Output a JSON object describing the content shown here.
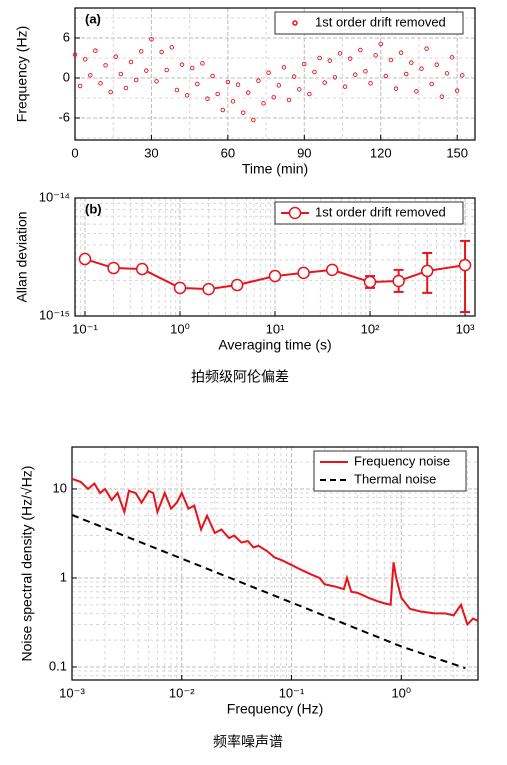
{
  "chart_data": [
    {
      "type": "scatter",
      "annotation": "(a)",
      "xlabel": "Time (min)",
      "ylabel": "Frequency (Hz)",
      "xlim": [
        0,
        157
      ],
      "ylim": [
        -9.3,
        10.5
      ],
      "xticks": [
        0,
        30,
        60,
        90,
        120,
        150
      ],
      "yticks": [
        -6,
        0,
        6
      ],
      "grid": true,
      "legend": "upper right",
      "series": [
        {
          "name": "1st order drift removed",
          "color": "#e8141c",
          "marker": "circle",
          "line_style": "none",
          "x": [
            0,
            2,
            4,
            6,
            8,
            10,
            12,
            14,
            16,
            18,
            20,
            22,
            24,
            26,
            28,
            30,
            32,
            34,
            36,
            38,
            40,
            42,
            44,
            46,
            48,
            50,
            52,
            54,
            56,
            58,
            60,
            62,
            64,
            66,
            68,
            70,
            72,
            74,
            76,
            78,
            80,
            82,
            84,
            86,
            88,
            90,
            92,
            94,
            96,
            98,
            100,
            102,
            104,
            106,
            108,
            110,
            112,
            114,
            116,
            118,
            120,
            122,
            124,
            126,
            128,
            130,
            132,
            134,
            136,
            138,
            140,
            142,
            144,
            146,
            148,
            150,
            152
          ],
          "values": [
            3.5,
            -1.2,
            2.8,
            0.4,
            4.1,
            -0.8,
            1.9,
            -2.1,
            3.2,
            0.6,
            -1.5,
            2.4,
            -0.3,
            4.0,
            1.1,
            5.8,
            -0.5,
            3.9,
            1.2,
            4.6,
            -1.8,
            2.0,
            -2.6,
            1.5,
            -0.9,
            2.2,
            -3.1,
            0.3,
            -2.4,
            -4.8,
            -0.6,
            -3.5,
            -1.0,
            -5.2,
            -2.2,
            -6.3,
            -0.4,
            -3.8,
            0.8,
            -2.9,
            -1.1,
            1.6,
            -3.3,
            0.2,
            -1.7,
            2.1,
            -2.4,
            0.9,
            3.0,
            -0.7,
            2.6,
            0.1,
            3.7,
            -1.3,
            2.9,
            0.5,
            4.2,
            1.0,
            -0.8,
            3.4,
            5.1,
            0.3,
            2.7,
            -1.6,
            3.8,
            0.6,
            2.3,
            -2.0,
            1.4,
            4.4,
            -0.9,
            2.0,
            -2.8,
            0.7,
            3.1,
            -1.9,
            0.4
          ]
        }
      ]
    },
    {
      "type": "line",
      "annotation": "(b)",
      "xlabel": "Averaging time (s)",
      "ylabel": "Allan deviation",
      "xscale": "log",
      "yscale": "log",
      "xlim": [
        0.0785,
        1273
      ],
      "ylim": [
        1e-15,
        1e-14
      ],
      "xticks": [
        {
          "value": 0.1,
          "label": "10⁻¹"
        },
        {
          "value": 1,
          "label": "10⁰"
        },
        {
          "value": 10,
          "label": "10¹"
        },
        {
          "value": 100,
          "label": "10²"
        },
        {
          "value": 1000,
          "label": "10³"
        }
      ],
      "yticks": [
        {
          "value": 1e-15,
          "label": "10⁻¹⁵"
        },
        {
          "value": 1e-14,
          "label": "10⁻¹⁴"
        }
      ],
      "grid": true,
      "legend": "upper right",
      "series": [
        {
          "name": "1st order drift removed",
          "color": "#e8141c",
          "marker": "circle",
          "line_style": "solid",
          "x": [
            0.1,
            0.2,
            0.4,
            1,
            2,
            4,
            10,
            20,
            40,
            100,
            200,
            400,
            1000
          ],
          "values": [
            3.04e-15,
            2.55e-15,
            2.5e-15,
            1.73e-15,
            1.69e-15,
            1.83e-15,
            2.18e-15,
            2.32e-15,
            2.46e-15,
            1.94e-15,
            1.98e-15,
            2.41e-15,
            2.7e-15
          ],
          "yerr_minus": [
            1.5e-16,
            1.2e-16,
            1.2e-16,
            8e-17,
            8e-17,
            9e-17,
            1e-16,
            1.2e-16,
            1.4e-16,
            2.1e-16,
            3.8e-16,
            8.4e-16,
            1.62e-15
          ],
          "yerr_plus": [
            1.5e-16,
            1.2e-16,
            1.2e-16,
            8e-17,
            8e-17,
            9e-17,
            1e-16,
            1.2e-16,
            1.4e-16,
            2.4e-16,
            4.8e-16,
            1.01e-15,
            1.63e-15
          ]
        }
      ]
    },
    {
      "type": "line",
      "xlabel": "Frequency (Hz)",
      "ylabel": "Noise spectral density (Hz/√Hz)",
      "xscale": "log",
      "yscale": "log",
      "xlim": [
        0.001,
        5
      ],
      "ylim": [
        0.0714,
        29.6
      ],
      "xticks": [
        {
          "value": 0.001,
          "label": "10⁻³"
        },
        {
          "value": 0.01,
          "label": "10⁻²"
        },
        {
          "value": 0.1,
          "label": "10⁻¹"
        },
        {
          "value": 1,
          "label": "10⁰"
        }
      ],
      "yticks": [
        0.1,
        1,
        10
      ],
      "grid": true,
      "legend": "upper right",
      "series": [
        {
          "name": "Frequency noise",
          "color": "#e8141c",
          "marker": "none",
          "line_style": "solid",
          "x": [
            0.001,
            0.0012,
            0.0014,
            0.0016,
            0.0018,
            0.002,
            0.0023,
            0.0026,
            0.003,
            0.0033,
            0.0038,
            0.0043,
            0.005,
            0.0055,
            0.006,
            0.007,
            0.008,
            0.009,
            0.01,
            0.0115,
            0.013,
            0.015,
            0.017,
            0.02,
            0.023,
            0.027,
            0.03,
            0.035,
            0.04,
            0.045,
            0.05,
            0.06,
            0.07,
            0.08,
            0.1,
            0.12,
            0.15,
            0.18,
            0.2,
            0.25,
            0.3,
            0.32,
            0.35,
            0.4,
            0.5,
            0.6,
            0.7,
            0.8,
            0.85,
            0.9,
            1.0,
            1.2,
            1.5,
            2,
            2.5,
            3,
            3.5,
            4,
            4.5,
            5
          ],
          "values": [
            13,
            12,
            10,
            11.5,
            9,
            10,
            7.5,
            9,
            5.5,
            9.5,
            9,
            7,
            9.5,
            9,
            5.5,
            9,
            6,
            7,
            9,
            6,
            6.5,
            3.5,
            5,
            3.2,
            3.5,
            2.8,
            3,
            2.5,
            2.6,
            2.2,
            2.3,
            2,
            1.7,
            1.6,
            1.4,
            1.25,
            1.1,
            1.0,
            0.85,
            0.8,
            0.75,
            1.0,
            0.7,
            0.68,
            0.6,
            0.55,
            0.52,
            0.5,
            1.5,
            1.0,
            0.6,
            0.45,
            0.42,
            0.4,
            0.4,
            0.38,
            0.5,
            0.3,
            0.35,
            0.33
          ]
        },
        {
          "name": "Thermal noise",
          "color": "#000000",
          "marker": "none",
          "line_style": "dashed",
          "x": [
            0.001,
            0.01,
            0.1,
            1,
            3.83
          ],
          "values": [
            5.1,
            1.65,
            0.53,
            0.17,
            0.097
          ]
        }
      ]
    }
  ],
  "captions": [
    "拍频级阿伦偏差",
    "频率噪声谱"
  ]
}
